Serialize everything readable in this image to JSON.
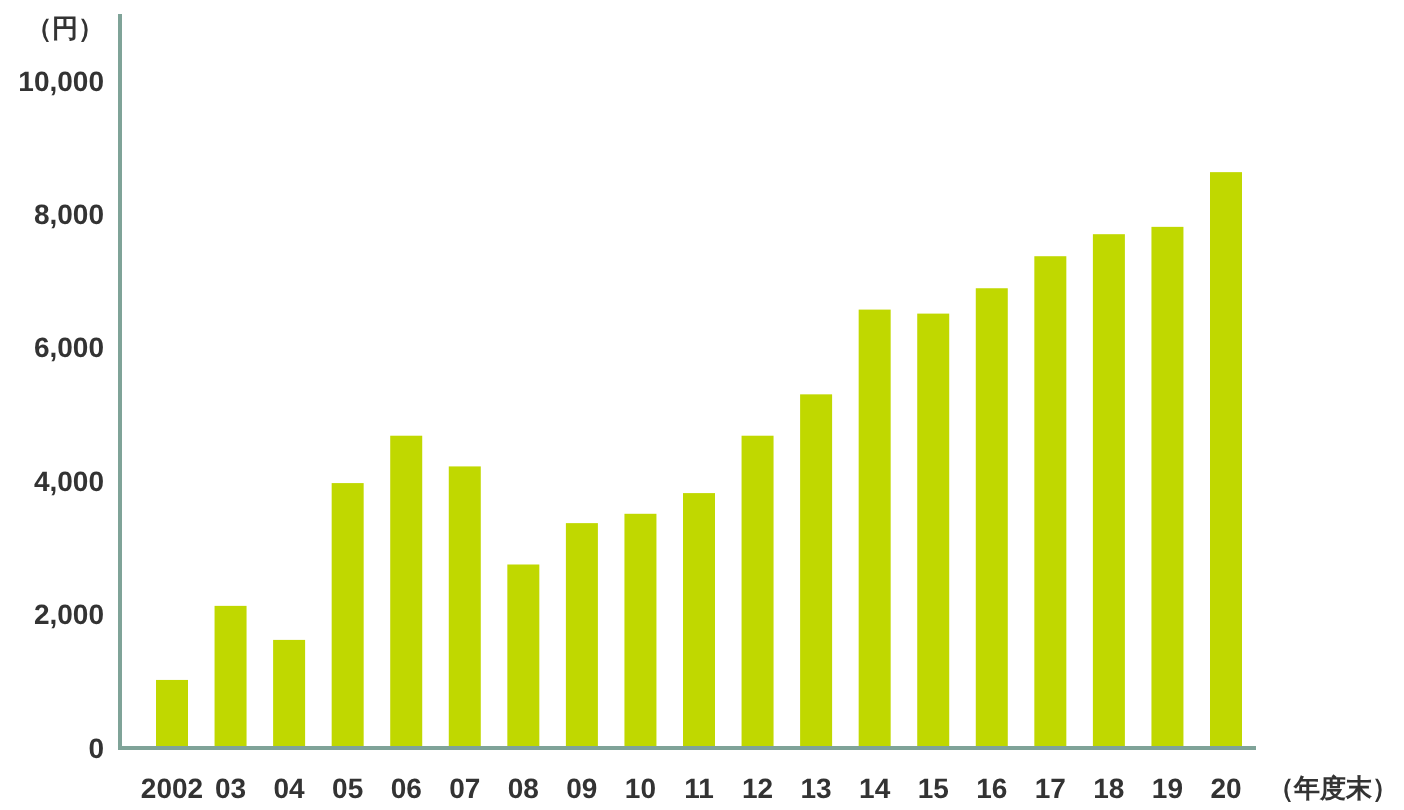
{
  "chart_data": {
    "type": "bar",
    "categories": [
      "2002",
      "03",
      "04",
      "05",
      "06",
      "07",
      "08",
      "09",
      "10",
      "11",
      "12",
      "13",
      "14",
      "15",
      "16",
      "17",
      "18",
      "19",
      "20"
    ],
    "values": [
      1020,
      2130,
      1620,
      3970,
      4680,
      4220,
      2750,
      3370,
      3510,
      3820,
      4680,
      5300,
      6570,
      6510,
      6890,
      7370,
      7700,
      7810,
      8630
    ],
    "color": "#c0d800",
    "xlabel": "（年度末）",
    "ylabel": "（円）",
    "ylim": [
      0,
      11000
    ],
    "yticks": [
      0,
      {
        "value": 2000,
        "label": "2,000"
      },
      {
        "value": 4000,
        "label": "4,000"
      },
      {
        "value": 6000,
        "label": "6,000"
      },
      {
        "value": 8000,
        "label": "8,000"
      },
      {
        "value": 10000,
        "label": "10,000"
      }
    ],
    "grid": false
  }
}
